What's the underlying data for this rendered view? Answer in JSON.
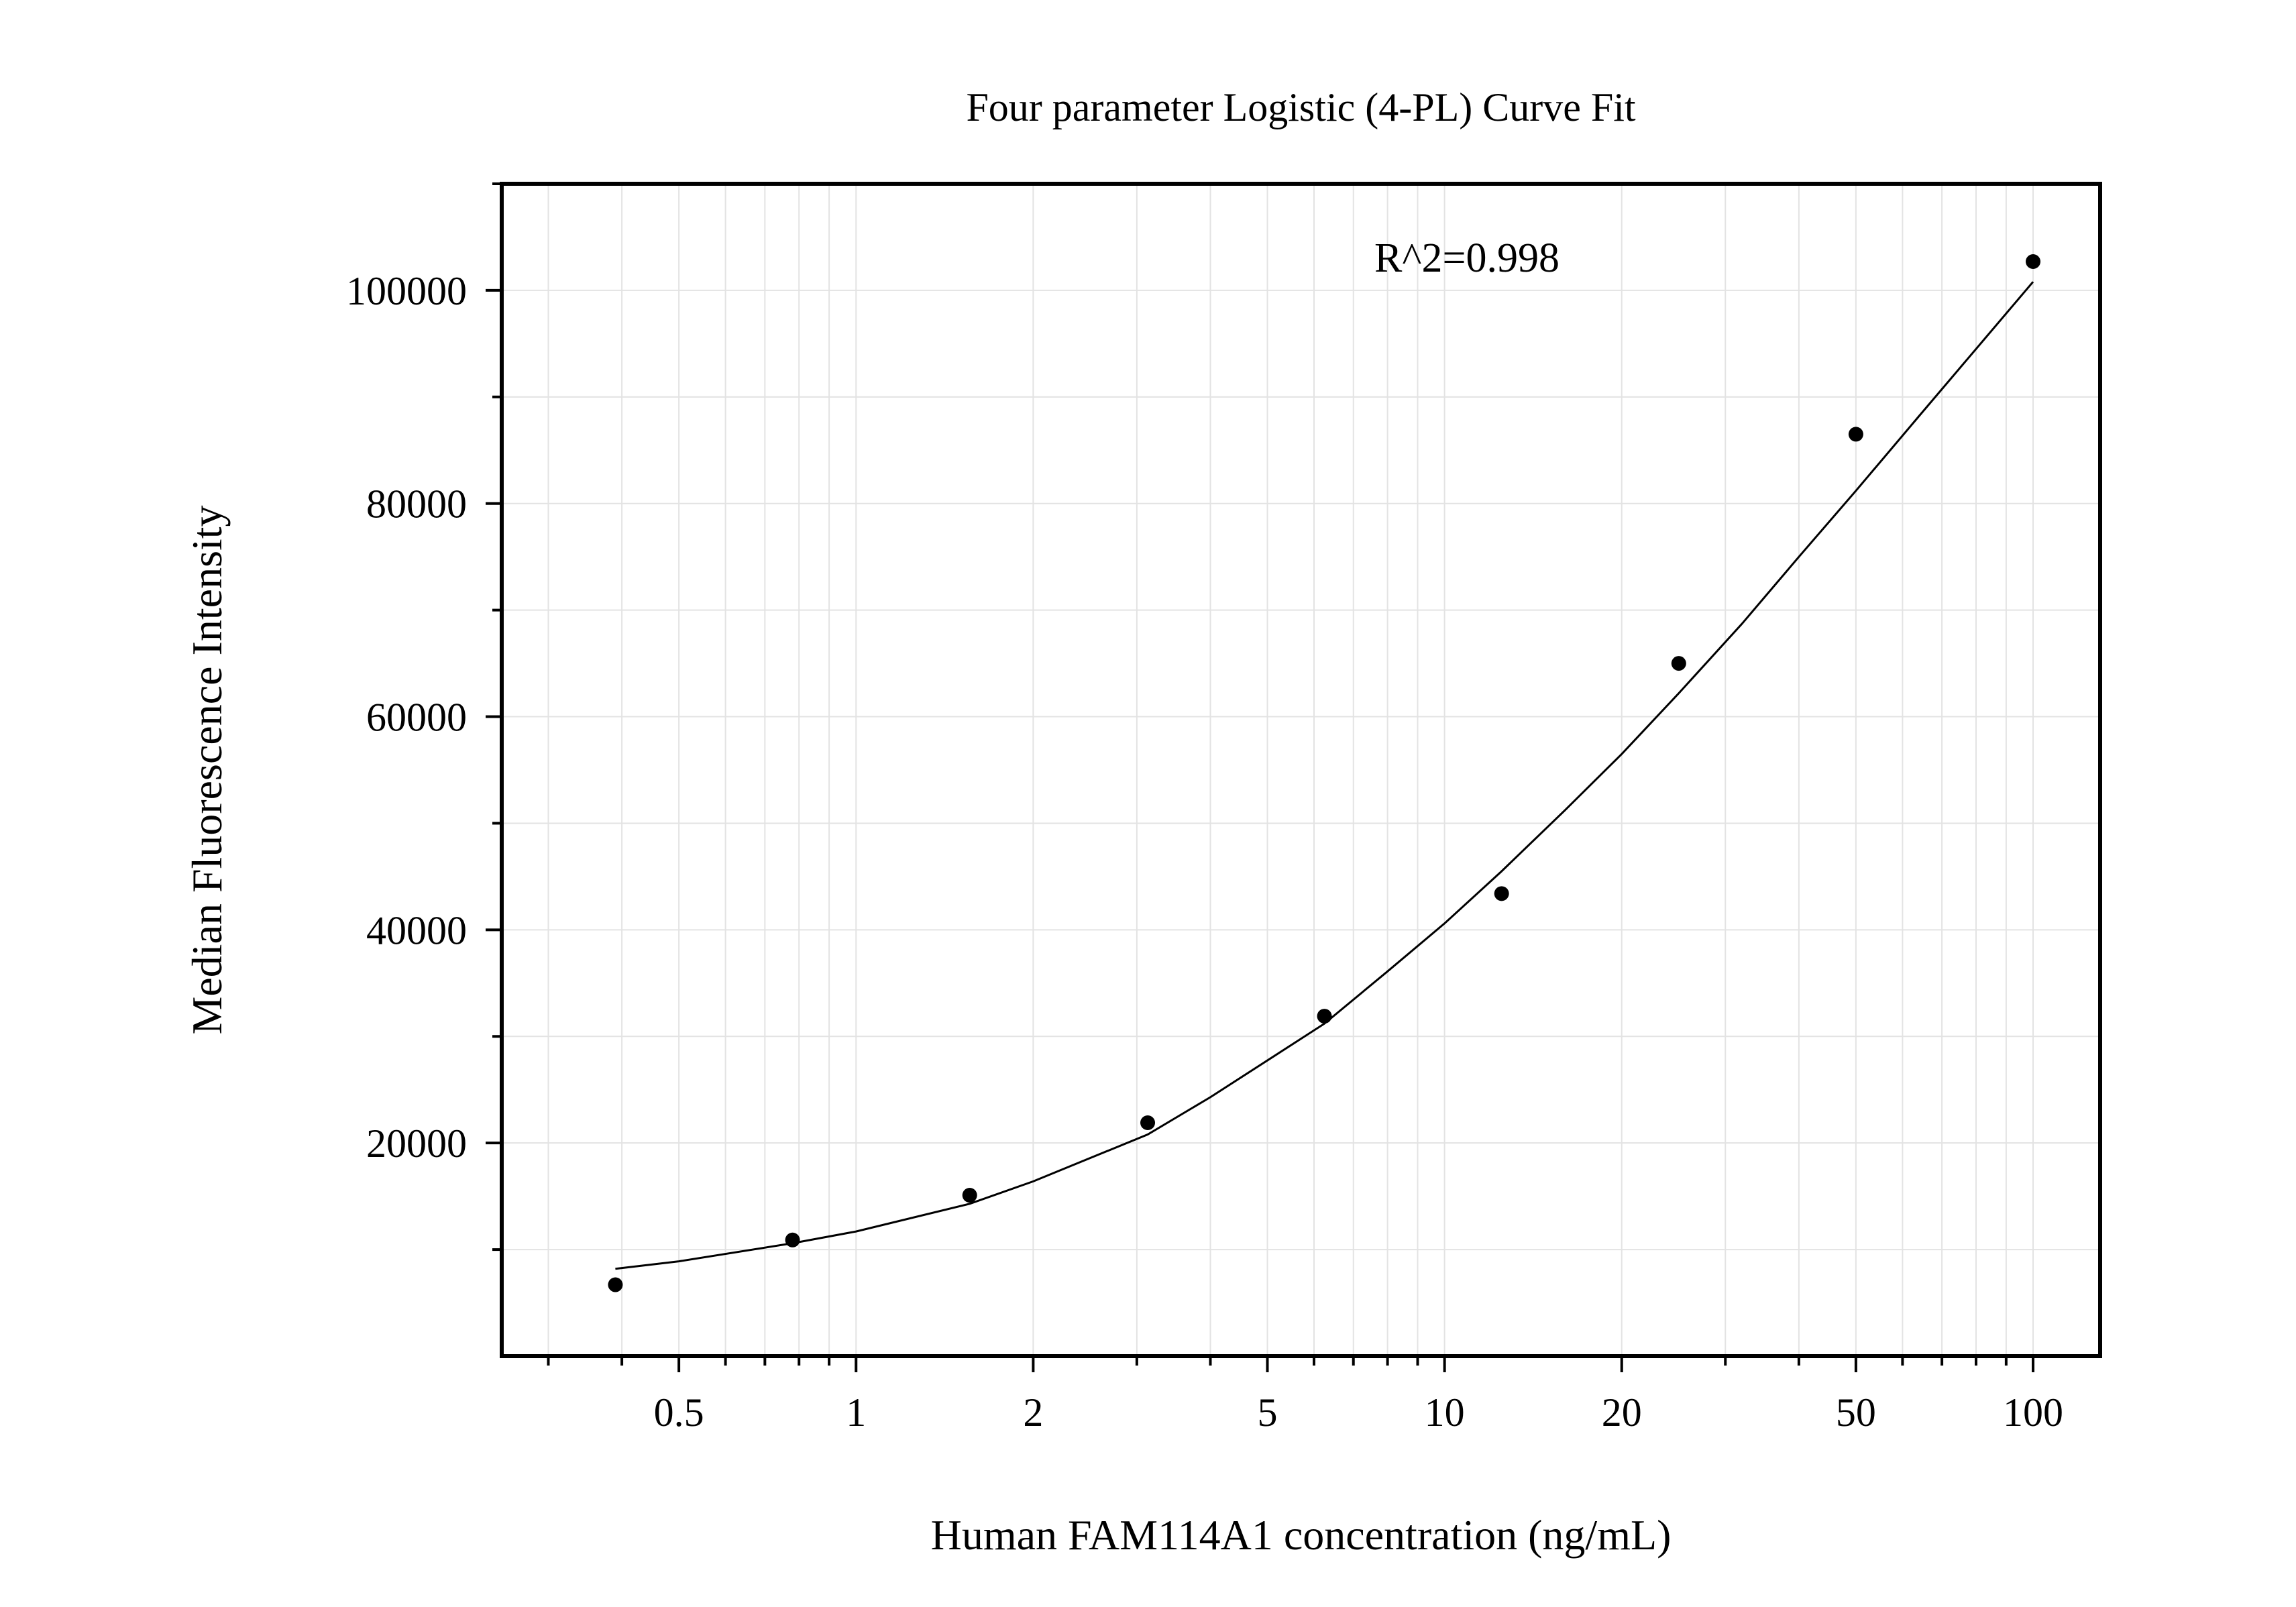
{
  "chart_data": {
    "type": "scatter",
    "title": "Four parameter Logistic (4-PL) Curve Fit",
    "xlabel": "Human FAM114A1 concentration (ng/mL)",
    "ylabel": "Median Fluorescence Intensity",
    "x_scale": "log",
    "xlim": [
      0.25,
      130
    ],
    "ylim": [
      0,
      110000
    ],
    "x_ticks": [
      {
        "value": 0.5,
        "label": "0.5"
      },
      {
        "value": 1,
        "label": "1"
      },
      {
        "value": 2,
        "label": "2"
      },
      {
        "value": 5,
        "label": "5"
      },
      {
        "value": 10,
        "label": "10"
      },
      {
        "value": 20,
        "label": "20"
      },
      {
        "value": 50,
        "label": "50"
      },
      {
        "value": 100,
        "label": "100"
      }
    ],
    "y_ticks": [
      {
        "value": 20000,
        "label": "20000"
      },
      {
        "value": 40000,
        "label": "40000"
      },
      {
        "value": 60000,
        "label": "60000"
      },
      {
        "value": 80000,
        "label": "80000"
      },
      {
        "value": 100000,
        "label": "100000"
      }
    ],
    "grid": true,
    "annotation": "R^2=0.998",
    "series": [
      {
        "type": "scatter",
        "color": "#000000",
        "x": [
          0.39,
          0.78,
          1.56,
          3.13,
          6.25,
          12.5,
          25,
          50,
          100
        ],
        "y": [
          6700,
          10900,
          15100,
          21900,
          31900,
          43400,
          65000,
          86500,
          102700
        ]
      },
      {
        "type": "line",
        "color": "#000000",
        "x": [
          0.39,
          0.5,
          0.78,
          1,
          1.56,
          2,
          3.13,
          4,
          6.25,
          8,
          10,
          12.5,
          16,
          20,
          25,
          32,
          40,
          50,
          64,
          80,
          100
        ],
        "y": [
          8200,
          8900,
          10600,
          11700,
          14300,
          16400,
          20800,
          24300,
          31200,
          36100,
          40600,
          45500,
          51200,
          56500,
          62200,
          68700,
          75000,
          81200,
          88200,
          94500,
          100800
        ]
      }
    ]
  }
}
